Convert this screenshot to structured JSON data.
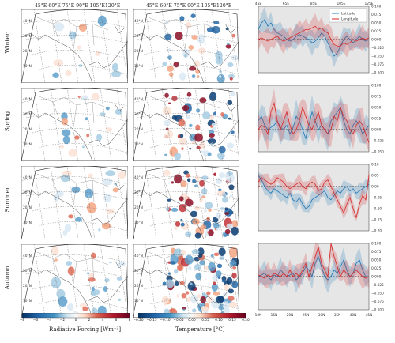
{
  "seasons": [
    "Winter",
    "Spring",
    "Summer",
    "Autumn"
  ],
  "map_top_labels": {
    "col1": "45°E  60°E  75°E  90°E 105°E120°E",
    "col2": "45°E  60°E  75°E  90°E 105°E120°E"
  },
  "lat_labels": [
    "40°N",
    "30°N",
    "20°N",
    "10°N"
  ],
  "colorbar_radiative": {
    "label": "Radiative Forcing [Wm⁻²]",
    "ticks": [
      "−8",
      "−6",
      "−4",
      "−2",
      "0",
      "2",
      "4",
      "6",
      "8"
    ]
  },
  "colorbar_temperature": {
    "label": "Temperature [°C]",
    "ticks": [
      "−0.20",
      "−0.15",
      "−0.10",
      "−0.05",
      "0.00",
      "0.05",
      "0.10",
      "0.15",
      "0.20"
    ]
  },
  "colors": {
    "latitude": "#1f77b4",
    "longitude": "#d62728",
    "panel_bg": "#e6e6e6"
  },
  "chart_data": {
    "type": "line",
    "legend": [
      "Latitude",
      "Longitude"
    ],
    "top_axis_ticks": [
      "45E",
      "65E",
      "85E",
      "105E",
      "125E"
    ],
    "bottom_axis_ticks": [
      "10N",
      "15N",
      "20N",
      "25N",
      "30N",
      "35N",
      "40N",
      "45N"
    ],
    "panels": [
      {
        "season": "Winter",
        "ylim": [
          -0.1,
          0.1
        ],
        "yticks": [
          "0.100",
          "0.075",
          "0.050",
          "0.025",
          "0.000",
          "−0.025",
          "−0.050",
          "−0.075",
          "−0.100"
        ],
        "series": [
          {
            "name": "Latitude",
            "values": [
              0.03,
              0.05,
              0.06,
              0.04,
              0.05,
              0.03,
              0.02,
              0.015,
              0.01,
              0.0,
              -0.005,
              0.0,
              0.01,
              0.015,
              0.01,
              0.005,
              0.0,
              -0.01,
              -0.005,
              0.005,
              0.02,
              0.01,
              -0.01,
              -0.03,
              -0.05,
              -0.04,
              -0.02,
              0.0,
              0.01,
              0.0,
              -0.01,
              0.0,
              0.01,
              0.0,
              -0.005,
              0.0
            ]
          },
          {
            "name": "Longitude",
            "values": [
              0.0,
              0.005,
              0.0,
              -0.005,
              0.0,
              0.005,
              0.01,
              0.0,
              -0.005,
              0.0,
              0.005,
              0.01,
              0.015,
              0.02,
              0.025,
              0.03,
              0.03,
              0.035,
              0.04,
              0.03,
              0.035,
              0.025,
              0.02,
              0.0,
              -0.015,
              -0.02,
              -0.02,
              -0.01,
              -0.015,
              -0.01,
              0.0,
              -0.005,
              0.0,
              0.005,
              0.0,
              0.005
            ]
          }
        ]
      },
      {
        "season": "Spring",
        "ylim": [
          -0.05,
          0.1
        ],
        "yticks": [
          "0.100",
          "0.075",
          "0.050",
          "0.025",
          "0.000",
          "−0.025",
          "−0.050"
        ],
        "series": [
          {
            "name": "Latitude",
            "values": [
              0.02,
              0.03,
              0.01,
              0.0,
              0.005,
              0.01,
              0.02,
              0.005,
              0.0,
              0.01,
              -0.01,
              0.005,
              0.03,
              0.02,
              0.0,
              -0.02,
              0.01,
              0.04,
              0.02,
              0.0,
              0.01,
              0.0,
              -0.01,
              0.02,
              0.03,
              0.04,
              0.05,
              0.02,
              0.0,
              -0.01,
              0.01,
              0.02,
              0.01,
              -0.01,
              0.0,
              0.01
            ]
          },
          {
            "name": "Longitude",
            "values": [
              0.0,
              0.01,
              0.005,
              -0.01,
              0.04,
              0.06,
              0.02,
              0.0,
              0.02,
              0.04,
              0.01,
              -0.01,
              0.0,
              0.02,
              0.05,
              0.03,
              0.01,
              0.0,
              0.02,
              0.04,
              0.01,
              0.0,
              -0.01,
              0.0,
              0.03,
              0.02,
              0.05,
              0.03,
              0.02,
              0.0,
              -0.01,
              0.01,
              0.02,
              0.01,
              -0.01,
              -0.03
            ]
          }
        ]
      },
      {
        "season": "Summer",
        "ylim": [
          -0.2,
          0.1
        ],
        "yticks": [
          "0.10",
          "0.05",
          "0.00",
          "−0.05",
          "−0.10",
          "−0.15",
          "−0.20"
        ],
        "series": [
          {
            "name": "Latitude",
            "values": [
              0.05,
              0.03,
              0.0,
              -0.02,
              -0.03,
              -0.01,
              -0.02,
              -0.03,
              -0.04,
              -0.05,
              -0.03,
              -0.06,
              -0.07,
              -0.05,
              -0.08,
              -0.1,
              -0.09,
              -0.06,
              -0.05,
              -0.04,
              -0.03,
              -0.02,
              -0.05,
              -0.06,
              -0.04,
              -0.02,
              -0.03,
              -0.01,
              0.0,
              -0.02,
              -0.01,
              -0.03,
              -0.02,
              -0.01,
              0.0,
              0.01
            ]
          },
          {
            "name": "Longitude",
            "values": [
              0.02,
              0.04,
              0.03,
              0.02,
              0.01,
              0.02,
              0.04,
              0.03,
              0.02,
              0.0,
              -0.01,
              0.0,
              0.01,
              0.02,
              0.0,
              -0.01,
              0.01,
              0.02,
              0.01,
              -0.02,
              -0.01,
              0.02,
              0.03,
              0.0,
              -0.03,
              -0.06,
              -0.09,
              -0.12,
              -0.08,
              -0.05,
              -0.1,
              -0.14,
              -0.08,
              -0.04,
              -0.06,
              0.05
            ]
          }
        ]
      },
      {
        "season": "Autumn",
        "ylim": [
          -0.1,
          0.1
        ],
        "yticks": [
          "0.100",
          "0.075",
          "0.050",
          "0.025",
          "0.000",
          "−0.025",
          "−0.050",
          "−0.075",
          "−0.100"
        ],
        "series": [
          {
            "name": "Latitude",
            "values": [
              0.0,
              0.005,
              0.01,
              0.0,
              -0.01,
              0.005,
              0.0,
              0.02,
              0.01,
              0.0,
              0.005,
              0.01,
              -0.01,
              0.0,
              0.01,
              0.03,
              0.02,
              0.0,
              0.04,
              0.06,
              0.03,
              0.0,
              -0.01,
              0.0,
              0.02,
              0.01,
              0.03,
              0.05,
              0.02,
              0.0,
              0.01,
              0.04,
              0.05,
              0.02,
              0.0,
              0.0
            ]
          },
          {
            "name": "Longitude",
            "values": [
              0.005,
              0.0,
              -0.005,
              0.005,
              0.0,
              0.01,
              0.005,
              0.0,
              0.01,
              0.0,
              0.02,
              0.0,
              0.01,
              0.0,
              0.02,
              0.04,
              0.0,
              0.03,
              0.06,
              0.09,
              0.04,
              0.02,
              0.0,
              0.1,
              0.06,
              0.03,
              0.0,
              0.02,
              0.01,
              0.0,
              0.01,
              0.02,
              0.01,
              0.0,
              -0.005,
              0.0
            ]
          }
        ]
      }
    ]
  }
}
